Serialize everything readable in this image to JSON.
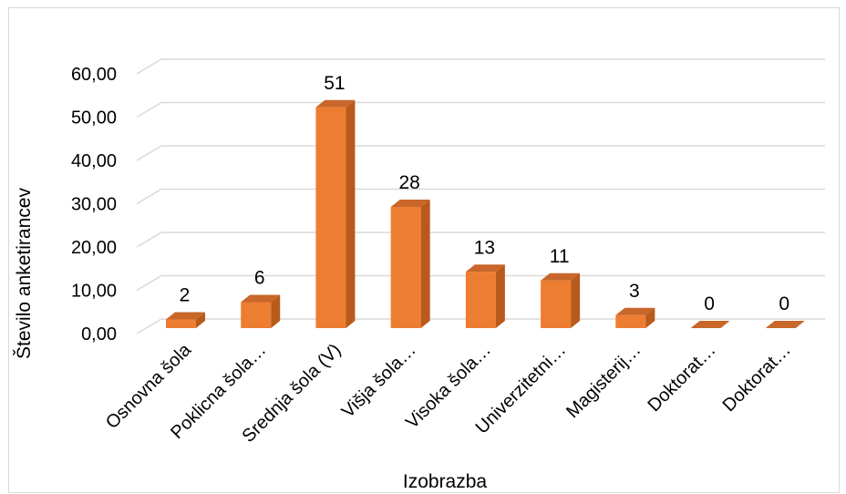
{
  "chart_data": {
    "type": "bar",
    "xlabel": "Izobrazba",
    "ylabel": "Število anketirancev",
    "categories": [
      "Osnovna šola",
      "Poklicna šola…",
      "Srednja šola (V)",
      "Višja šola…",
      "Visoka šola…",
      "Univerzitetni…",
      "Magisterij…",
      "Doktorat…",
      "Doktorat…"
    ],
    "values": [
      2,
      6,
      51,
      28,
      13,
      11,
      3,
      0,
      0
    ],
    "data_labels": [
      "2",
      "6",
      "51",
      "28",
      "13",
      "11",
      "3",
      "0",
      "0"
    ],
    "y_ticks": [
      "0,00",
      "10,00",
      "20,00",
      "30,00",
      "40,00",
      "50,00",
      "60,00"
    ],
    "ylim": [
      0,
      60
    ],
    "grid": true,
    "style": "3d-column",
    "colors": {
      "bar_front": "#ED7D31",
      "bar_side": "#B85A1B",
      "bar_top": "#C9662A",
      "grid": "#D9D9D9"
    }
  }
}
